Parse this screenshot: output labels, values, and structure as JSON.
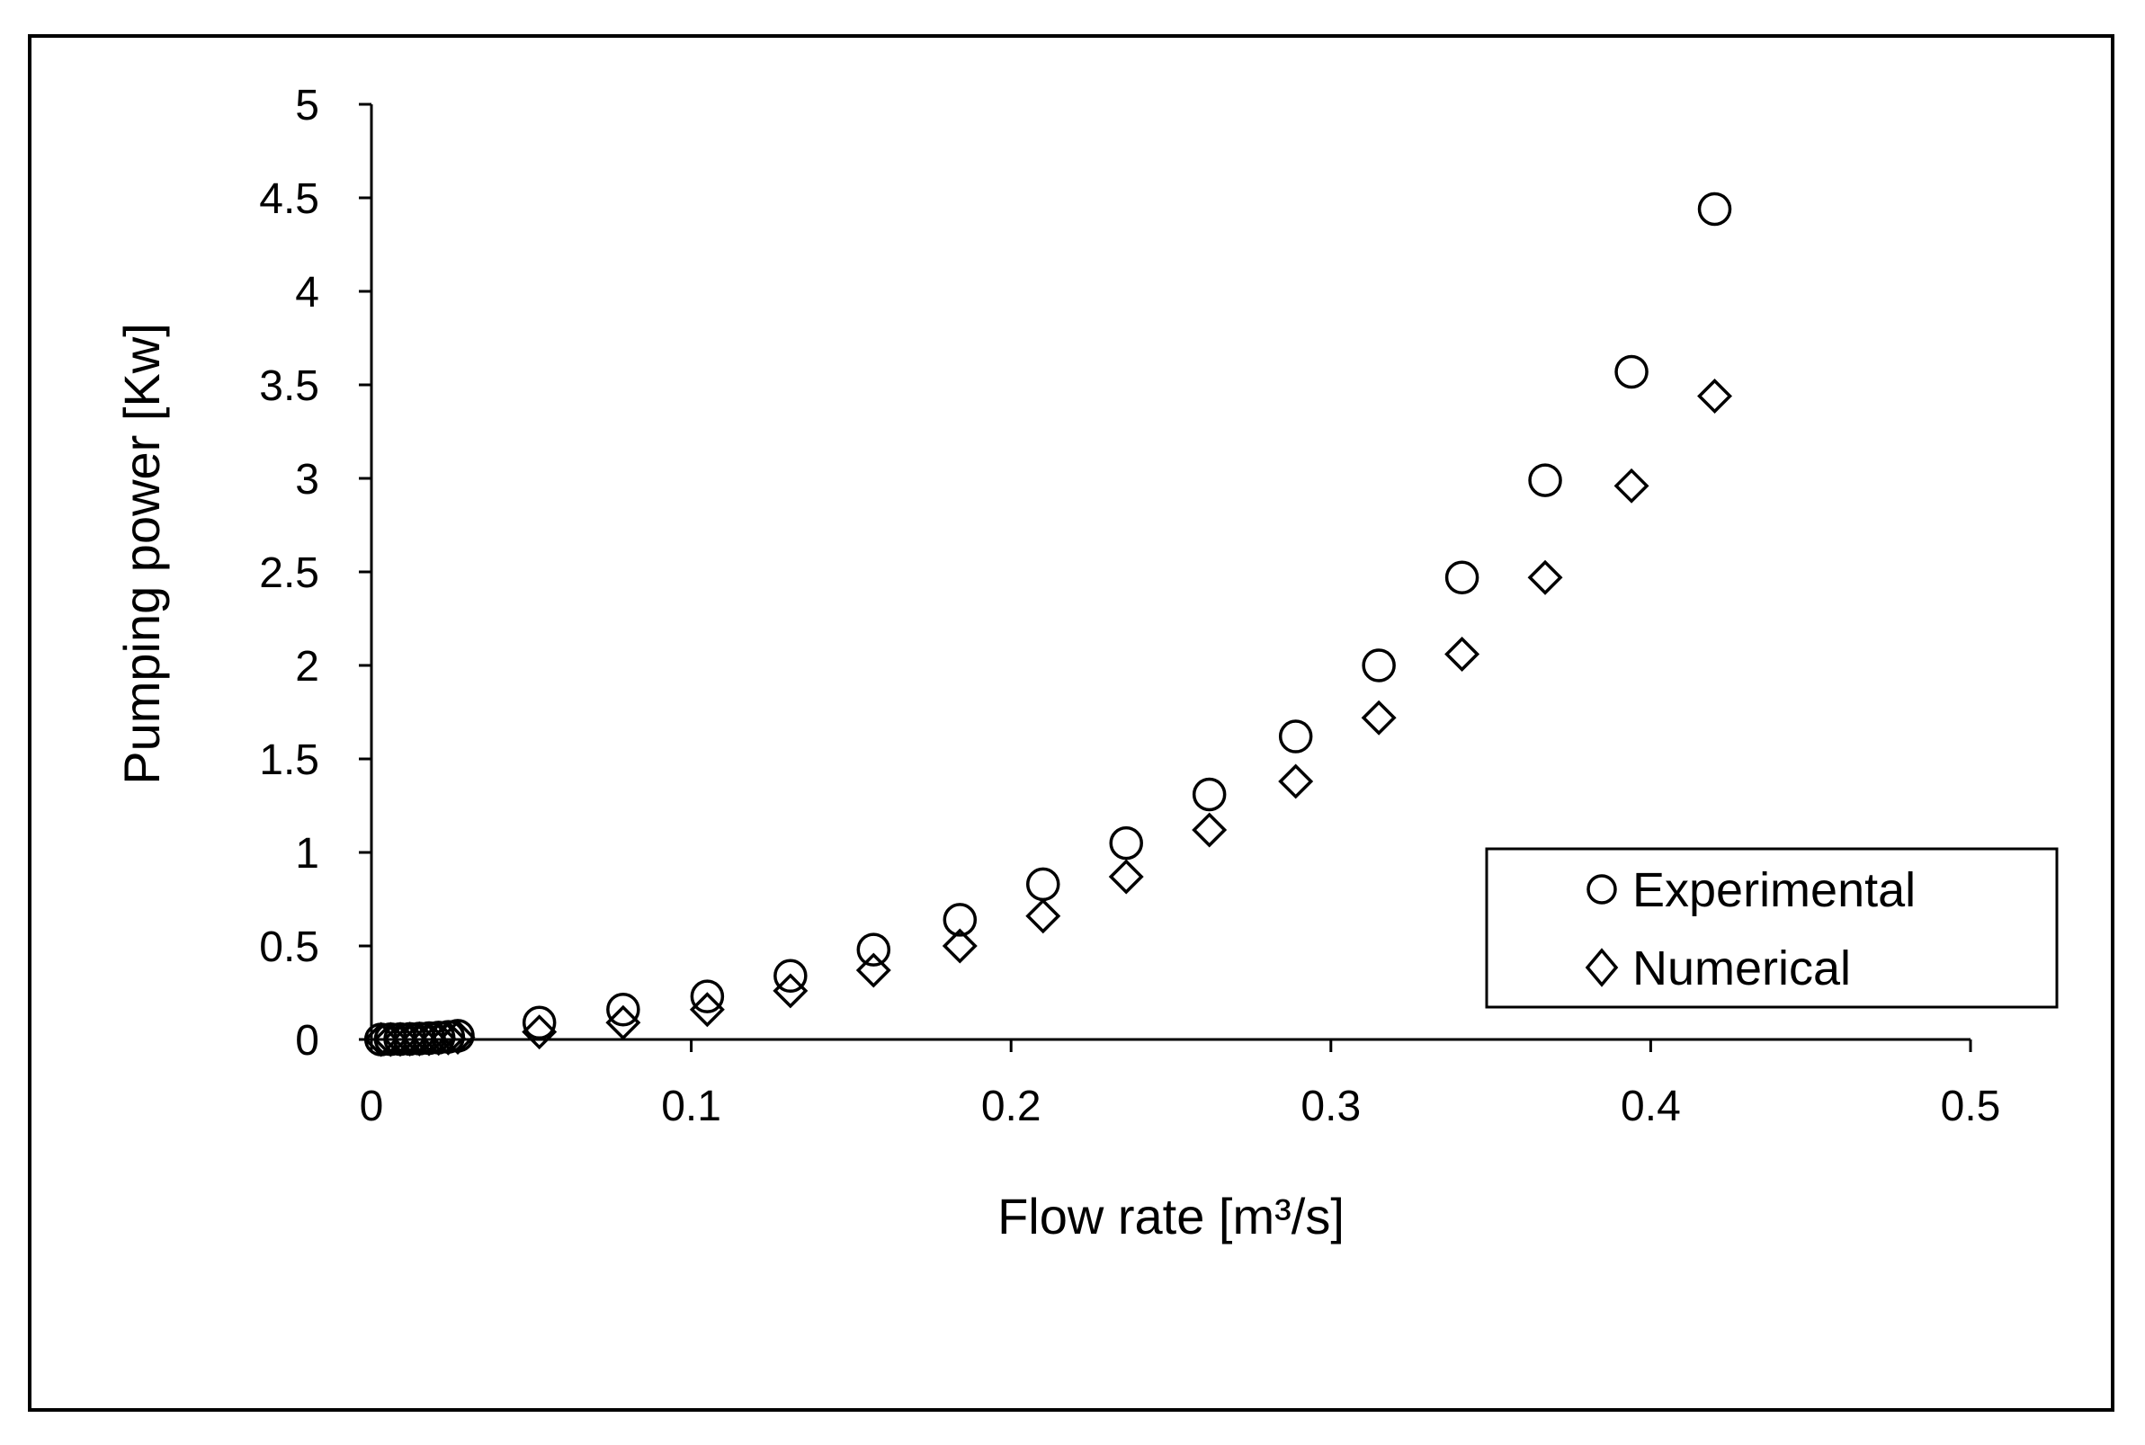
{
  "chart_data": {
    "type": "scatter",
    "title": "",
    "xlabel": "Flow rate [m³/s]",
    "ylabel": "Pumping power [Kw]",
    "xlim": [
      0,
      0.5
    ],
    "ylim": [
      0,
      5
    ],
    "xticks": [
      0,
      0.1,
      0.2,
      0.3,
      0.4,
      0.5
    ],
    "xtick_labels": [
      "0",
      "0.1",
      "0.2",
      "0.3",
      "0.4",
      "0.5"
    ],
    "yticks": [
      0,
      0.5,
      1,
      1.5,
      2,
      2.5,
      3,
      3.5,
      4,
      4.5,
      5
    ],
    "ytick_labels": [
      "0",
      "0.5",
      "1",
      "1.5",
      "2",
      "2.5",
      "3",
      "3.5",
      "4",
      "4.5",
      "5"
    ],
    "grid": false,
    "legend_position": "bottom-right",
    "series": [
      {
        "name": "Experimental",
        "marker": "circle",
        "points": [
          [
            0.003,
            0.0
          ],
          [
            0.006,
            0.001
          ],
          [
            0.009,
            0.002
          ],
          [
            0.012,
            0.003
          ],
          [
            0.015,
            0.005
          ],
          [
            0.018,
            0.007
          ],
          [
            0.021,
            0.01
          ],
          [
            0.024,
            0.014
          ],
          [
            0.027,
            0.02
          ],
          [
            0.0525,
            0.09
          ],
          [
            0.0787,
            0.16
          ],
          [
            0.105,
            0.23
          ],
          [
            0.131,
            0.34
          ],
          [
            0.157,
            0.48
          ],
          [
            0.184,
            0.64
          ],
          [
            0.21,
            0.83
          ],
          [
            0.236,
            1.05
          ],
          [
            0.262,
            1.31
          ],
          [
            0.289,
            1.62
          ],
          [
            0.315,
            2.0
          ],
          [
            0.341,
            2.47
          ],
          [
            0.367,
            2.99
          ],
          [
            0.394,
            3.57
          ],
          [
            0.42,
            4.44
          ]
        ]
      },
      {
        "name": "Numerical",
        "marker": "diamond",
        "points": [
          [
            0.003,
            0.0
          ],
          [
            0.006,
            0.0
          ],
          [
            0.009,
            0.001
          ],
          [
            0.012,
            0.002
          ],
          [
            0.015,
            0.003
          ],
          [
            0.018,
            0.004
          ],
          [
            0.021,
            0.006
          ],
          [
            0.024,
            0.008
          ],
          [
            0.027,
            0.012
          ],
          [
            0.0525,
            0.04
          ],
          [
            0.0787,
            0.09
          ],
          [
            0.105,
            0.16
          ],
          [
            0.131,
            0.26
          ],
          [
            0.157,
            0.37
          ],
          [
            0.184,
            0.5
          ],
          [
            0.21,
            0.66
          ],
          [
            0.236,
            0.87
          ],
          [
            0.262,
            1.12
          ],
          [
            0.289,
            1.38
          ],
          [
            0.315,
            1.72
          ],
          [
            0.341,
            2.06
          ],
          [
            0.367,
            2.47
          ],
          [
            0.394,
            2.96
          ],
          [
            0.42,
            3.44
          ]
        ]
      }
    ]
  }
}
